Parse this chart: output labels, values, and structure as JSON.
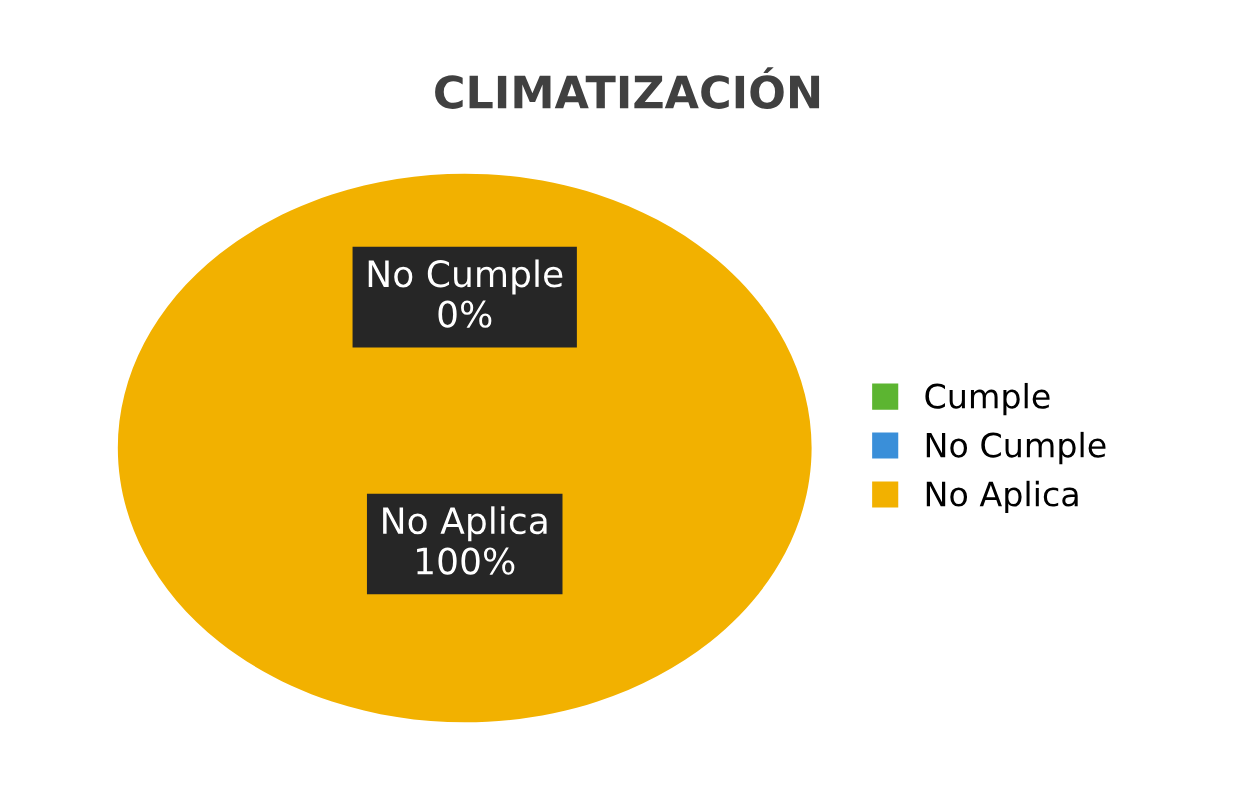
{
  "chart_data": {
    "type": "pie",
    "title": "CLIMATIZACIÓN",
    "categories": [
      "Cumple",
      "No Cumple",
      "No Aplica"
    ],
    "values": [
      0,
      0,
      100
    ],
    "colors": [
      "#5cb531",
      "#3a8fd9",
      "#f2b100"
    ],
    "value_labels": [
      null,
      "0%",
      "100%"
    ],
    "legend": "right"
  }
}
